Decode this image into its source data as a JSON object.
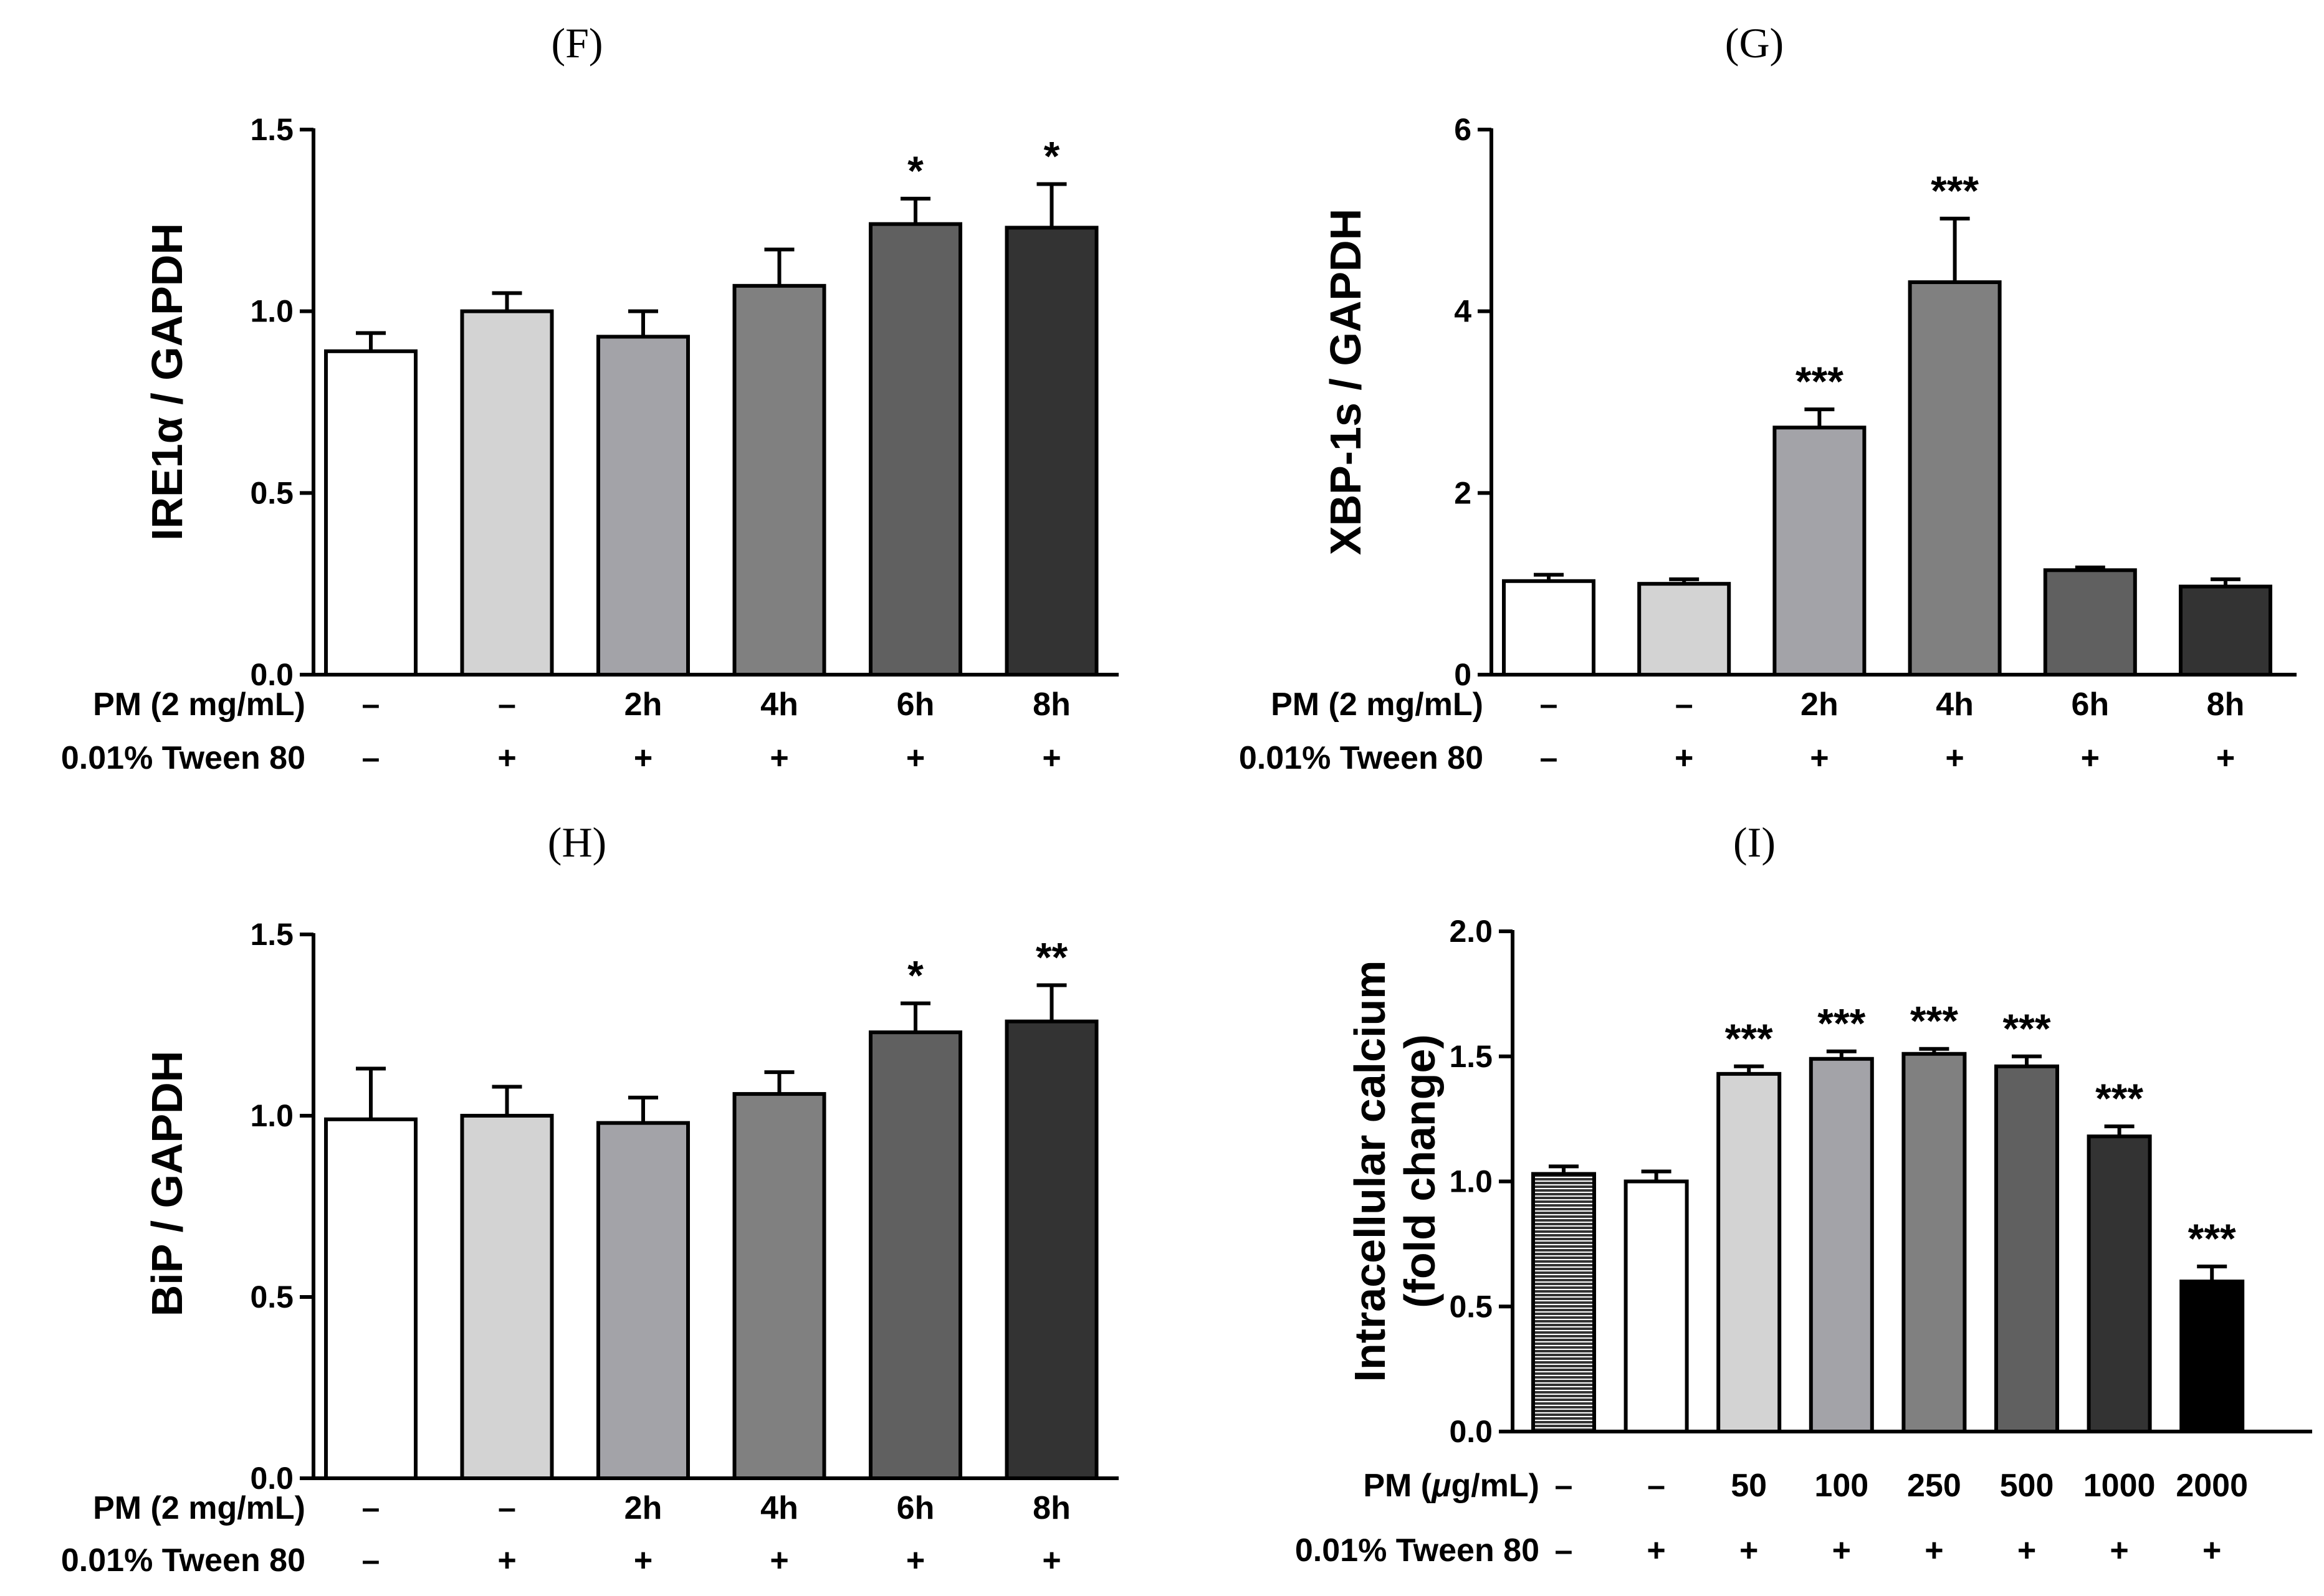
{
  "colors": {
    "axis": "#000000",
    "hatch_line": "#333333",
    "bar_fills_6": [
      "#ffffff",
      "#d3d3d3",
      "#a3a3a8",
      "#808080",
      "#606060",
      "#333333"
    ],
    "bar_fills_8": [
      "hatch",
      "#ffffff",
      "#d3d3d3",
      "#a3a3a8",
      "#808080",
      "#606060",
      "#333333",
      "#000000"
    ]
  },
  "chart_data": [
    {
      "panel": "(F)",
      "type": "bar",
      "ylabel": "IRE1α / GAPDH",
      "ylim": [
        0,
        1.5
      ],
      "yticks": [
        "0.0",
        "0.5",
        "1.0",
        "1.5"
      ],
      "ytick_values": [
        0,
        0.5,
        1.0,
        1.5
      ],
      "values": [
        0.89,
        1.0,
        0.93,
        1.07,
        1.24,
        1.23
      ],
      "errors": [
        0.05,
        0.05,
        0.07,
        0.1,
        0.07,
        0.12
      ],
      "significance": [
        "",
        "",
        "",
        "",
        "*",
        "*"
      ],
      "row1_label": "PM (2 mg/mL)",
      "row1": [
        "–",
        "–",
        "2h",
        "4h",
        "6h",
        "8h"
      ],
      "row2_label": "0.01% Tween 80",
      "row2": [
        "–",
        "+",
        "+",
        "+",
        "+",
        "+"
      ]
    },
    {
      "panel": "(G)",
      "type": "bar",
      "ylabel": "XBP-1s / GAPDH",
      "ylim": [
        0,
        6
      ],
      "yticks": [
        "0",
        "2",
        "4",
        "6"
      ],
      "ytick_values": [
        0,
        2,
        4,
        6
      ],
      "values": [
        1.03,
        1.0,
        2.72,
        4.32,
        1.15,
        0.97
      ],
      "errors": [
        0.07,
        0.05,
        0.2,
        0.7,
        0.03,
        0.08
      ],
      "significance": [
        "",
        "",
        "***",
        "***",
        "",
        ""
      ],
      "row1_label": "PM (2 mg/mL)",
      "row1": [
        "–",
        "–",
        "2h",
        "4h",
        "6h",
        "8h"
      ],
      "row2_label": "0.01% Tween 80",
      "row2": [
        "–",
        "+",
        "+",
        "+",
        "+",
        "+"
      ]
    },
    {
      "panel": "(H)",
      "type": "bar",
      "ylabel": "BiP / GAPDH",
      "ylim": [
        0,
        1.5
      ],
      "yticks": [
        "0.0",
        "0.5",
        "1.0",
        "1.5"
      ],
      "ytick_values": [
        0,
        0.5,
        1.0,
        1.5
      ],
      "values": [
        0.99,
        1.0,
        0.98,
        1.06,
        1.23,
        1.26
      ],
      "errors": [
        0.14,
        0.08,
        0.07,
        0.06,
        0.08,
        0.1
      ],
      "significance": [
        "",
        "",
        "",
        "",
        "*",
        "**"
      ],
      "row1_label": "PM (2 mg/mL)",
      "row1": [
        "–",
        "–",
        "2h",
        "4h",
        "6h",
        "8h"
      ],
      "row2_label": "0.01% Tween 80",
      "row2": [
        "–",
        "+",
        "+",
        "+",
        "+",
        "+"
      ]
    },
    {
      "panel": "(I)",
      "type": "bar",
      "ylabel_line1": "Intracellular calcium",
      "ylabel_line2": "(fold change)",
      "ylim": [
        0,
        2.0
      ],
      "yticks": [
        "0.0",
        "0.5",
        "1.0",
        "1.5",
        "2.0"
      ],
      "ytick_values": [
        0,
        0.5,
        1.0,
        1.5,
        2.0
      ],
      "values": [
        1.03,
        1.0,
        1.43,
        1.49,
        1.51,
        1.46,
        1.18,
        0.6
      ],
      "errors": [
        0.03,
        0.04,
        0.03,
        0.03,
        0.02,
        0.04,
        0.04,
        0.06
      ],
      "significance": [
        "",
        "",
        "***",
        "***",
        "***",
        "***",
        "***",
        "***"
      ],
      "row1_label_a": "PM (",
      "row1_label_mu": "μ",
      "row1_label_b": "g/mL)",
      "row1": [
        "–",
        "–",
        "50",
        "100",
        "250",
        "500",
        "1000",
        "2000"
      ],
      "row2_label": "0.01% Tween 80",
      "row2": [
        "–",
        "+",
        "+",
        "+",
        "+",
        "+",
        "+",
        "+"
      ]
    }
  ]
}
